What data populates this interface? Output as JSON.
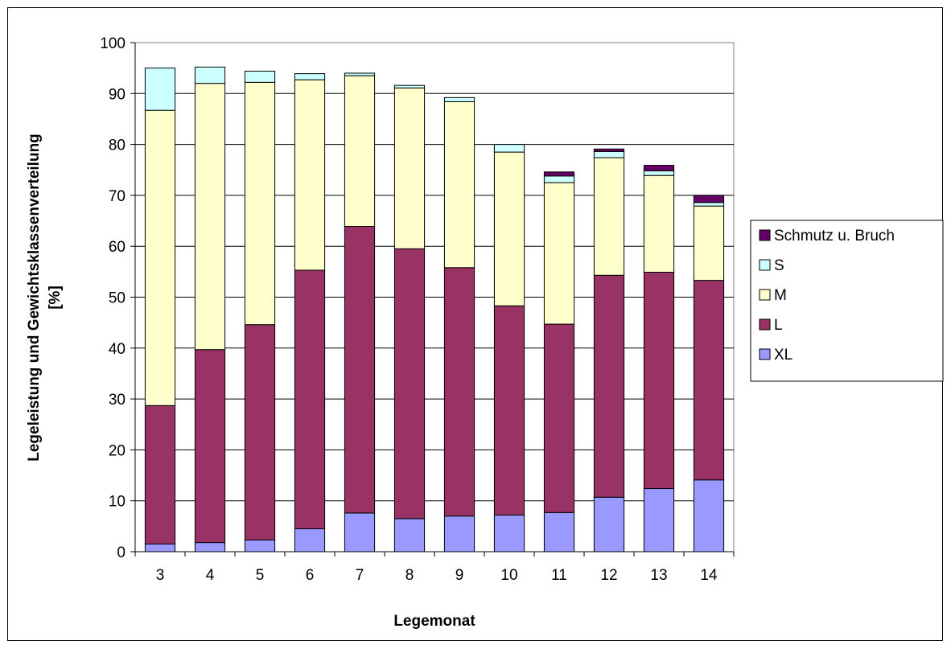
{
  "chart_data": {
    "type": "bar",
    "stacked": true,
    "title": "",
    "xlabel": "Legemonat",
    "ylabel_lines": [
      "Legeleistung und Gewichtsklassenverteilung",
      "[%]"
    ],
    "ylim": [
      0,
      100
    ],
    "yticks": [
      "0",
      "10",
      "20",
      "30",
      "40",
      "50",
      "60",
      "70",
      "80",
      "90",
      "100"
    ],
    "grid": true,
    "legend_position": "right",
    "categories": [
      "3",
      "4",
      "5",
      "6",
      "7",
      "8",
      "9",
      "10",
      "11",
      "12",
      "13",
      "14"
    ],
    "series": [
      {
        "name": "XL",
        "color": "#9999ff",
        "values": [
          1.5,
          1.8,
          2.3,
          4.5,
          7.6,
          6.5,
          7.0,
          7.2,
          7.7,
          10.7,
          12.4,
          14.1
        ]
      },
      {
        "name": "L",
        "color": "#993366",
        "values": [
          27.2,
          37.9,
          42.3,
          50.8,
          56.3,
          53.0,
          48.8,
          41.1,
          37.0,
          43.6,
          42.5,
          39.2
        ]
      },
      {
        "name": "M",
        "color": "#ffffcc",
        "values": [
          58.0,
          52.3,
          47.6,
          37.4,
          29.6,
          31.6,
          32.6,
          30.2,
          27.8,
          23.1,
          19.0,
          14.6
        ]
      },
      {
        "name": "S",
        "color": "#ccffff",
        "values": [
          8.3,
          3.2,
          2.2,
          1.2,
          0.5,
          0.5,
          0.8,
          1.5,
          1.3,
          1.2,
          0.9,
          0.7
        ]
      },
      {
        "name": "Schmutz u. Bruch",
        "color": "#660066",
        "values": [
          0,
          0,
          0,
          0,
          0,
          0,
          0,
          0,
          0.8,
          0.5,
          1.1,
          1.4
        ]
      }
    ],
    "legend_order": [
      "Schmutz u. Bruch",
      "S",
      "M",
      "L",
      "XL"
    ]
  }
}
